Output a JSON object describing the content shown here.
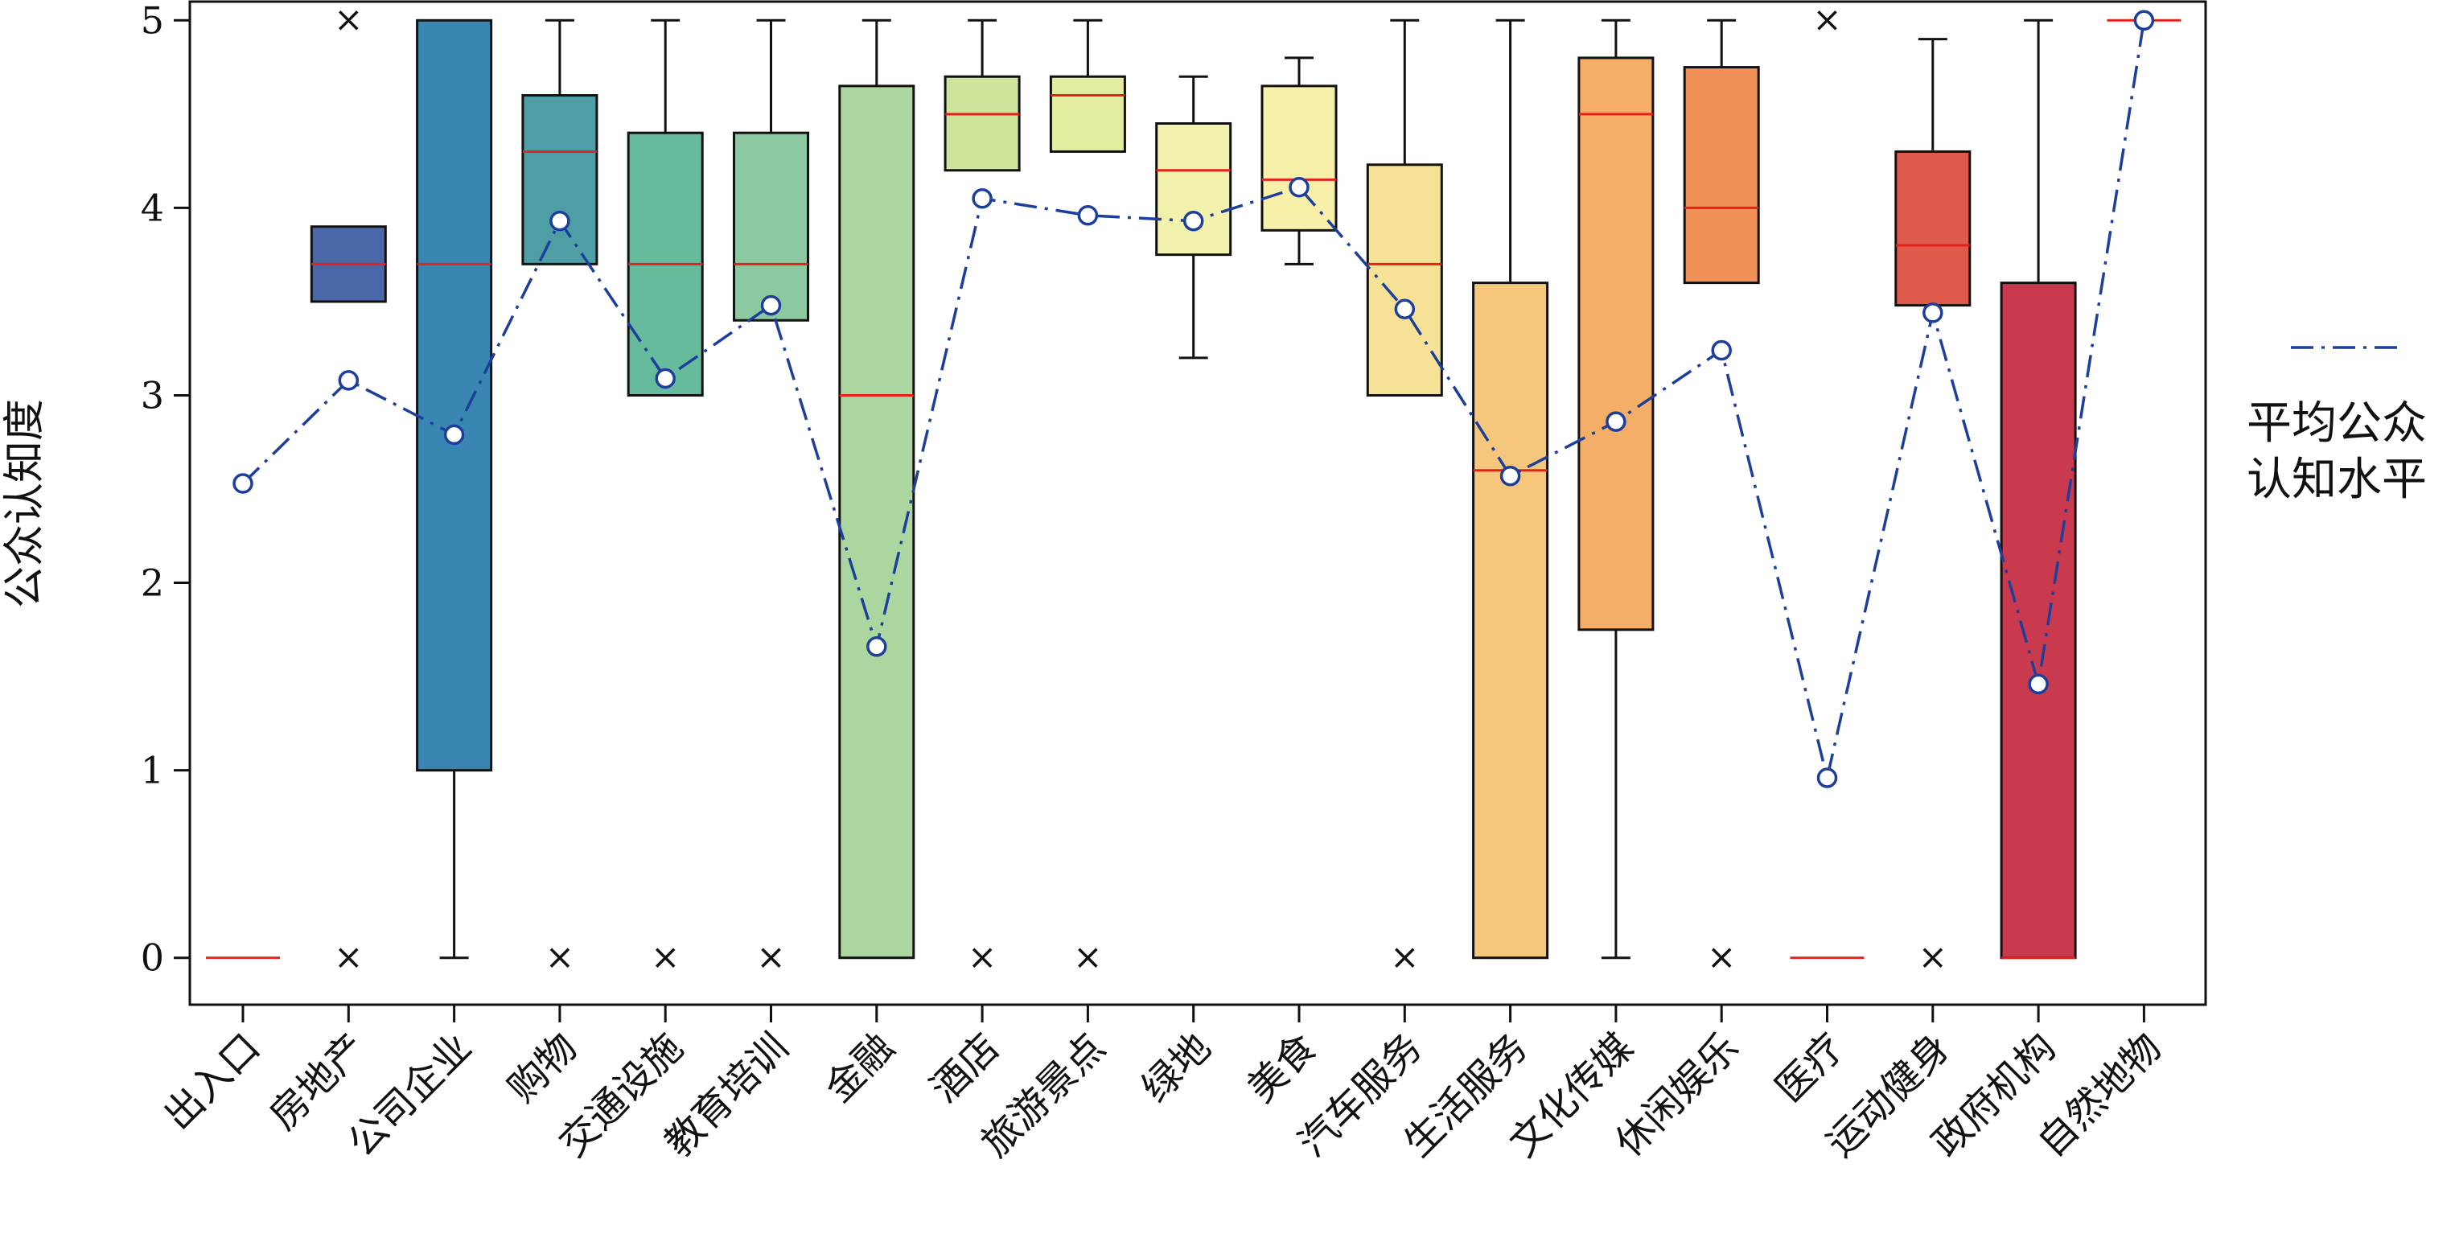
{
  "chart_data": {
    "type": "box",
    "title": "",
    "xlabel": "",
    "ylabel": "公众认知度",
    "ylim": [
      -0.25,
      5.1
    ],
    "yticks": [
      0,
      1,
      2,
      3,
      4,
      5
    ],
    "legend": {
      "label_lines": [
        "平均公众",
        "认知水平"
      ],
      "position": "right"
    },
    "categories": [
      "出入口",
      "房地产",
      "公司企业",
      "购物",
      "交通设施",
      "教育培训",
      "金融",
      "酒店",
      "旅游景点",
      "绿地",
      "美食",
      "汽车服务",
      "生活服务",
      "文化传媒",
      "休闲娱乐",
      "医疗",
      "运动健身",
      "政府机构",
      "自然地物"
    ],
    "boxes": [
      {
        "q1": 0,
        "median": 0,
        "q3": 0,
        "whislo": 0,
        "whishi": 0,
        "fliers": [],
        "color": "#ffffff"
      },
      {
        "q1": 3.5,
        "median": 3.7,
        "q3": 3.9,
        "whislo": 3.5,
        "whishi": 3.9,
        "fliers": [
          5,
          0
        ],
        "color": "#4a67a8"
      },
      {
        "q1": 1.0,
        "median": 3.7,
        "q3": 5.0,
        "whislo": 0,
        "whishi": 5.0,
        "fliers": [],
        "color": "#3a86b3"
      },
      {
        "q1": 3.7,
        "median": 4.3,
        "q3": 4.6,
        "whislo": 3.7,
        "whishi": 5.0,
        "fliers": [
          0
        ],
        "color": "#4e9fa5"
      },
      {
        "q1": 3.0,
        "median": 3.7,
        "q3": 4.4,
        "whislo": 3.0,
        "whishi": 5.0,
        "fliers": [
          0
        ],
        "color": "#66bb9c"
      },
      {
        "q1": 3.4,
        "median": 3.7,
        "q3": 4.4,
        "whislo": 3.4,
        "whishi": 5.0,
        "fliers": [
          0
        ],
        "color": "#8cc9a0"
      },
      {
        "q1": 0,
        "median": 3.0,
        "q3": 4.65,
        "whislo": 0,
        "whishi": 5.0,
        "fliers": [],
        "color": "#acd6a0"
      },
      {
        "q1": 4.2,
        "median": 4.5,
        "q3": 4.7,
        "whislo": 4.2,
        "whishi": 5.0,
        "fliers": [
          0
        ],
        "color": "#cde49a"
      },
      {
        "q1": 4.3,
        "median": 4.6,
        "q3": 4.7,
        "whislo": 4.3,
        "whishi": 5.0,
        "fliers": [
          0
        ],
        "color": "#e4eca0"
      },
      {
        "q1": 3.75,
        "median": 4.2,
        "q3": 4.45,
        "whislo": 3.2,
        "whishi": 4.7,
        "fliers": [],
        "color": "#f3f2ac"
      },
      {
        "q1": 3.88,
        "median": 4.15,
        "q3": 4.65,
        "whislo": 3.7,
        "whishi": 4.8,
        "fliers": [],
        "color": "#f8efa8"
      },
      {
        "q1": 3.0,
        "median": 3.7,
        "q3": 4.23,
        "whislo": 3.0,
        "whishi": 5.0,
        "fliers": [
          0
        ],
        "color": "#f6e296"
      },
      {
        "q1": 0,
        "median": 2.6,
        "q3": 3.6,
        "whislo": 0,
        "whishi": 5.0,
        "fliers": [],
        "color": "#f6c67c"
      },
      {
        "q1": 1.75,
        "median": 4.5,
        "q3": 4.8,
        "whislo": 0,
        "whishi": 5.0,
        "fliers": [],
        "color": "#f4ae68"
      },
      {
        "q1": 3.6,
        "median": 4.0,
        "q3": 4.75,
        "whislo": 3.6,
        "whishi": 5.0,
        "fliers": [
          0
        ],
        "color": "#f09258"
      },
      {
        "q1": 0,
        "median": 0,
        "q3": 0,
        "whislo": 0,
        "whishi": 0,
        "fliers": [
          5
        ],
        "color": "#ffffff"
      },
      {
        "q1": 3.48,
        "median": 3.8,
        "q3": 4.3,
        "whislo": 3.48,
        "whishi": 4.9,
        "fliers": [
          0
        ],
        "color": "#df5a4a"
      },
      {
        "q1": 0,
        "median": 0,
        "q3": 3.6,
        "whislo": 0,
        "whishi": 5.0,
        "fliers": [],
        "color": "#c93a4e"
      },
      {
        "q1": 5.0,
        "median": 5.0,
        "q3": 5.0,
        "whislo": 5.0,
        "whishi": 5.0,
        "fliers": [],
        "color": "#ffffff"
      }
    ],
    "mean_series": {
      "name": "平均公众认知水平",
      "values": [
        2.53,
        3.08,
        2.79,
        3.93,
        3.09,
        3.48,
        1.66,
        4.05,
        3.96,
        3.93,
        4.11,
        3.46,
        2.57,
        2.86,
        3.24,
        0.96,
        3.44,
        1.46,
        5.0
      ]
    },
    "colors": {
      "median": "#e8201c",
      "mean_line": "#1d3f9a",
      "axis": "#111111"
    }
  }
}
